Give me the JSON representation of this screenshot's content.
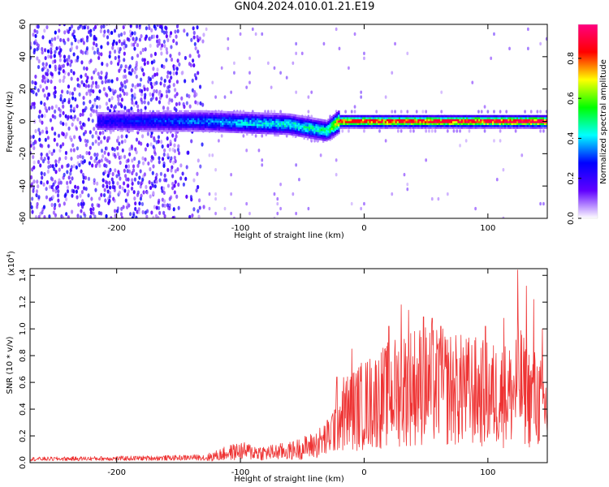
{
  "title": "GN04.2024.010.01.21.E19",
  "chart_data": [
    {
      "type": "heatmap",
      "title": "GN04.2024.010.01.21.E19",
      "xlabel": "Height of straight line (km)",
      "ylabel": "Frequency (Hz)",
      "xlim": [
        -270,
        148
      ],
      "ylim": [
        -60,
        60
      ],
      "xticks": [
        "-200",
        "-100",
        "0",
        "100"
      ],
      "xtick_values": [
        -200,
        -100,
        0,
        100
      ],
      "yticks": [
        "60",
        "40",
        "20",
        "0",
        "-20",
        "-40",
        "-60"
      ],
      "ytick_values": [
        60,
        40,
        20,
        0,
        -20,
        -40,
        -60
      ],
      "colorbar": {
        "label": "Normalized spectral amplitude",
        "range": [
          0.0,
          0.97
        ],
        "ticks": [
          "0.0",
          "0.2",
          "0.4",
          "0.6",
          "0.8"
        ],
        "tick_values": [
          0.0,
          0.2,
          0.4,
          0.6,
          0.8
        ],
        "colormap": [
          "#ffffff",
          "#6000ff",
          "#0000ff",
          "#00ffff",
          "#00ff00",
          "#ffff00",
          "#ff0000",
          "#ff0080"
        ]
      },
      "description_profile": {
        "noise_region_x": [
          -270,
          -130
        ],
        "ridge_center_hz": [
          [
            -215,
            0
          ],
          [
            -130,
            0
          ],
          [
            -60,
            -2
          ],
          [
            -30,
            -6
          ],
          [
            -20,
            0
          ],
          [
            148,
            0
          ]
        ],
        "ridge_peak_amplitude": [
          [
            -215,
            0.25
          ],
          [
            -140,
            0.35
          ],
          [
            -80,
            0.45
          ],
          [
            -30,
            0.5
          ],
          [
            -20,
            0.85
          ],
          [
            148,
            0.92
          ]
        ]
      }
    },
    {
      "type": "line",
      "xlabel": "Height of straight line (km)",
      "ylabel": "SNR (10 * v/v)",
      "yscale_label": "(x10",
      "yscale_exp": "4",
      "xlim": [
        -270,
        148
      ],
      "ylim": [
        0,
        14500
      ],
      "xticks": [
        "-200",
        "-100",
        "0",
        "100"
      ],
      "xtick_values": [
        -200,
        -100,
        0,
        100
      ],
      "yticks": [
        "0.0",
        "0.2",
        "0.4",
        "0.6",
        "0.8",
        "1.0",
        "1.2",
        "1.4"
      ],
      "ytick_values": [
        0,
        2000,
        4000,
        6000,
        8000,
        10000,
        12000,
        14000
      ],
      "color": "#ee3333",
      "envelope_x": [
        -270,
        -200,
        -150,
        -130,
        -120,
        -110,
        -100,
        -90,
        -80,
        -70,
        -60,
        -50,
        -40,
        -30,
        -25,
        -22,
        -18,
        -10,
        0,
        10,
        20,
        30,
        40,
        50,
        60,
        70,
        80,
        90,
        100,
        110,
        120,
        125,
        130,
        140,
        148
      ],
      "envelope_y": [
        300,
        350,
        400,
        450,
        700,
        1000,
        1200,
        1100,
        1000,
        1100,
        1200,
        1500,
        1800,
        2500,
        3500,
        4500,
        5000,
        5400,
        6000,
        6500,
        7000,
        7600,
        8000,
        8000,
        7800,
        7600,
        7400,
        7300,
        7000,
        7000,
        7000,
        8500,
        7000,
        6500,
        5500
      ],
      "spikes": [
        [
          -22,
          6400
        ],
        [
          -10,
          8500
        ],
        [
          20,
          10200
        ],
        [
          30,
          11800
        ],
        [
          36,
          11400
        ],
        [
          48,
          10900
        ],
        [
          55,
          10800
        ],
        [
          62,
          10200
        ],
        [
          80,
          8600
        ],
        [
          98,
          10200
        ],
        [
          113,
          10800
        ],
        [
          124,
          14400
        ],
        [
          131,
          13200
        ],
        [
          137,
          12200
        ],
        [
          144,
          10000
        ]
      ]
    }
  ]
}
